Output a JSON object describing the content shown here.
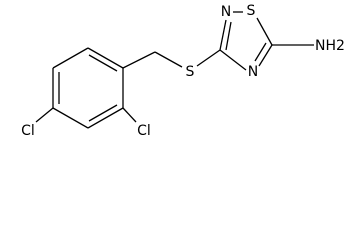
{
  "atoms": [
    {
      "label": "N"
    },
    {
      "label": "S"
    },
    {
      "label": "N"
    },
    {
      "label": "NH2"
    },
    {
      "label": "S"
    },
    {
      "label": "Cl"
    },
    {
      "label": "Cl"
    }
  ]
}
